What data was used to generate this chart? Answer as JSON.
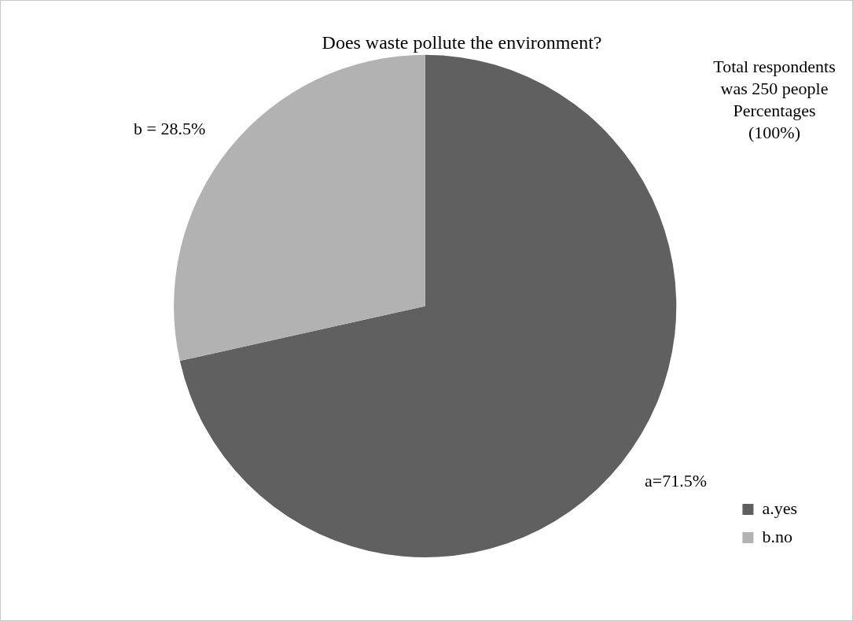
{
  "chart_data": {
    "type": "pie",
    "title": "Does waste pollute the environment?",
    "categories": [
      "a.yes",
      "b.no"
    ],
    "values": [
      71.5,
      28.5
    ],
    "colors": [
      "#606060",
      "#b2b2b2"
    ],
    "value_labels": [
      "a=71.5%",
      "b = 28.5%"
    ],
    "annotations": [
      "Total respondents was 250 people Percentages (100%)"
    ],
    "legend": "bottom right"
  }
}
